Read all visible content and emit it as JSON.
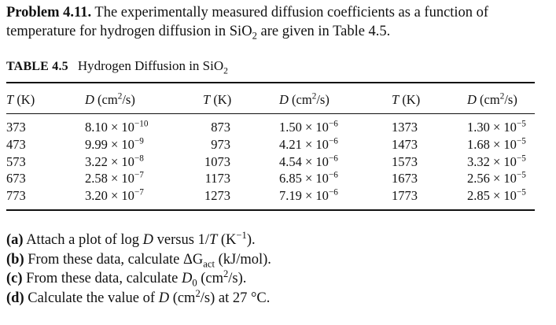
{
  "problem": {
    "label": "Problem 4.11.",
    "text_1": "The experimentally measured diffusion coefficients as a function of temperature for hydrogen diffusion in SiO",
    "sub": "2",
    "text_2": "are given in Table 4.5."
  },
  "table": {
    "caption_num": "TABLE 4.5",
    "caption_title": "Hydrogen Diffusion in SiO",
    "caption_sub": "2",
    "headers": {
      "t_symbol": "T",
      "t_unit": "(K)",
      "d_symbol": "D",
      "d_unit_pre": "(cm",
      "d_unit_sup": "2",
      "d_unit_post": "/s)"
    },
    "col1": {
      "T": [
        "373",
        "473",
        "573",
        "673",
        "773"
      ],
      "D": [
        {
          "m": "8.10 × 10",
          "e": "−10"
        },
        {
          "m": "9.99 × 10",
          "e": "−9"
        },
        {
          "m": "3.22 × 10",
          "e": "−8"
        },
        {
          "m": "2.58 × 10",
          "e": "−7"
        },
        {
          "m": "3.20 × 10",
          "e": "−7"
        }
      ]
    },
    "col2": {
      "T": [
        "873",
        "973",
        "1073",
        "1173",
        "1273"
      ],
      "D": [
        {
          "m": "1.50 × 10",
          "e": "−6"
        },
        {
          "m": "4.21 × 10",
          "e": "−6"
        },
        {
          "m": "4.54 × 10",
          "e": "−6"
        },
        {
          "m": "6.85 × 10",
          "e": "−6"
        },
        {
          "m": "7.19 × 10",
          "e": "−6"
        }
      ]
    },
    "col3": {
      "T": [
        "1373",
        "1473",
        "1573",
        "1673",
        "1773"
      ],
      "D": [
        {
          "m": "1.30 × 10",
          "e": "−5"
        },
        {
          "m": "1.68 × 10",
          "e": "−5"
        },
        {
          "m": "3.32 × 10",
          "e": "−5"
        },
        {
          "m": "2.56 × 10",
          "e": "−5"
        },
        {
          "m": "2.85 × 10",
          "e": "−5"
        }
      ]
    }
  },
  "questions": {
    "a": {
      "label": "(a)",
      "pre": "Attach a plot of log",
      "sym1": "D",
      "mid": "versus 1/",
      "sym2": "T",
      "unit": "(K",
      "unit_sup": "−1",
      "post": ")."
    },
    "b": {
      "label": "(b)",
      "pre": "From these data, calculate ΔG",
      "sub": "act",
      "post": "(kJ/mol)."
    },
    "c": {
      "label": "(c)",
      "pre": "From these data, calculate",
      "sym": "D",
      "sub": "0",
      "unit_pre": "(cm",
      "unit_sup": "2",
      "unit_post": "/s)."
    },
    "d": {
      "label": "(d)",
      "pre": "Calculate the value of",
      "sym": "D",
      "unit_pre": "(cm",
      "unit_sup": "2",
      "unit_post": "/s) at 27 °C."
    }
  }
}
